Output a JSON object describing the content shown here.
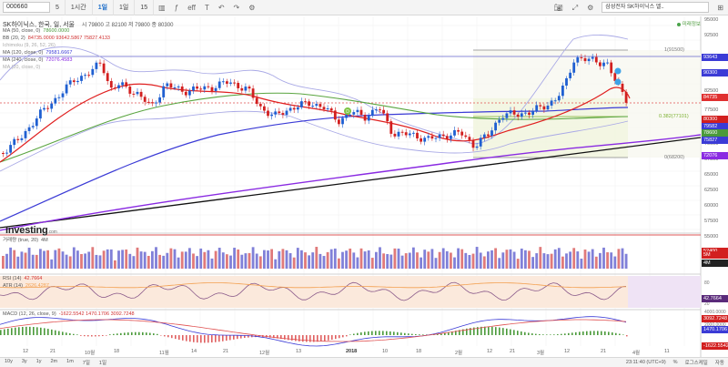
{
  "toolbar": {
    "symbol": "000660",
    "timeframes": [
      "5",
      "1시간",
      "1일",
      "1일",
      "15"
    ],
    "active_index": 2,
    "icons": [
      "candles-icon",
      "indicators-icon",
      "eff-icon",
      "text-icon",
      "undo-icon",
      "redo-icon",
      "gear-icon"
    ],
    "eff_label": "eff",
    "stock_field": "삼성전자 SK하이닉스 엘..",
    "right_icons": [
      "camera-icon",
      "fullscreen-icon",
      "settings-icon",
      "expand-icon"
    ]
  },
  "header": {
    "title": "SK하이닉스, 한국, 일, 서울",
    "ohlc": "시 79800  고 82100  저 79800  종 80300",
    "realtime": "미래정보"
  },
  "legends": [
    {
      "name": "MA (50, close, 0)",
      "value": "78600.0000"
    },
    {
      "name": "BB (20, 2)",
      "value": "84735.0000  93642.5867  75827.4133"
    },
    {
      "name": "Ichimoku (9, 26, 52, 26)",
      "value": ""
    },
    {
      "name": "MA (120, close, 0)",
      "value": "79581.6667"
    },
    {
      "name": "MA (240, close, 0)",
      "value": "72076.4583"
    },
    {
      "name": "MA (20, close, 0)",
      "value": ""
    }
  ],
  "price_tags": [
    {
      "label": "93643",
      "color": "#3b3bd6",
      "y": 45
    },
    {
      "label": "90300",
      "color": "#3b3bd6",
      "y": 62
    },
    {
      "label": "84735",
      "color": "#e03030",
      "y": 89
    },
    {
      "label": "80300",
      "color": "#d21f1f",
      "y": 113
    },
    {
      "label": "79582",
      "color": "#3b3bd6",
      "y": 121
    },
    {
      "label": "78600",
      "color": "#4a9a3a",
      "y": 128
    },
    {
      "label": "75827",
      "color": "#3b3bd6",
      "y": 136
    },
    {
      "label": "72076",
      "color": "#8a2be2",
      "y": 153
    },
    {
      "label": "52400",
      "color": "#d21f1f",
      "y": 258
    }
  ],
  "y_axis": [
    "95000",
    "92500",
    "87500",
    "82500",
    "77500",
    "70000",
    "67500",
    "65000",
    "62500",
    "60000",
    "57500",
    "55000",
    "52500"
  ],
  "fib": {
    "top": "1(91500)",
    "mid": "0.382(77101)",
    "bottom": "0(68200)"
  },
  "logo": {
    "name": "Investing",
    "suffix": ".com"
  },
  "volume": {
    "legend": "거래량 (true, 20)",
    "value": "4M",
    "tags": [
      "5M",
      "4M"
    ]
  },
  "rsi": {
    "legend": "RSI (14)",
    "value": "42.7664",
    "atr_legend": "ATR (14)",
    "atr_value": "2626.4287",
    "tag": "42.7664",
    "axis": [
      "80",
      "20"
    ]
  },
  "macd": {
    "legend": "MACD (12, 26, close, 9)",
    "values": "-1622.5542  1470.1706  3092.7248",
    "tags": [
      "3092.7248",
      "1470.1706",
      "-1622.5542"
    ],
    "axis": [
      "4000.0000",
      "2000.0000"
    ]
  },
  "x_axis": [
    {
      "label": "12",
      "bold": false
    },
    {
      "label": "21",
      "bold": false
    },
    {
      "label": "10월",
      "bold": false
    },
    {
      "label": "18",
      "bold": false
    },
    {
      "label": "11월",
      "bold": false
    },
    {
      "label": "14",
      "bold": false
    },
    {
      "label": "21",
      "bold": false
    },
    {
      "label": "12월",
      "bold": false
    },
    {
      "label": "13",
      "bold": false
    },
    {
      "label": "2018",
      "bold": true
    },
    {
      "label": "10",
      "bold": false
    },
    {
      "label": "18",
      "bold": false
    },
    {
      "label": "2월",
      "bold": false
    },
    {
      "label": "12",
      "bold": false
    },
    {
      "label": "21",
      "bold": false
    },
    {
      "label": "3월",
      "bold": false
    },
    {
      "label": "12",
      "bold": false
    },
    {
      "label": "21",
      "bold": false
    },
    {
      "label": "4월",
      "bold": false
    },
    {
      "label": "11",
      "bold": false
    }
  ],
  "bottom_bar": {
    "ranges": [
      "10y",
      "3y",
      "1y",
      "2m",
      "1m",
      "7일",
      "1일"
    ],
    "clock": "23:11:40 (UTC+9)",
    "controls": [
      "%",
      "로그스케일",
      "자동"
    ]
  }
}
